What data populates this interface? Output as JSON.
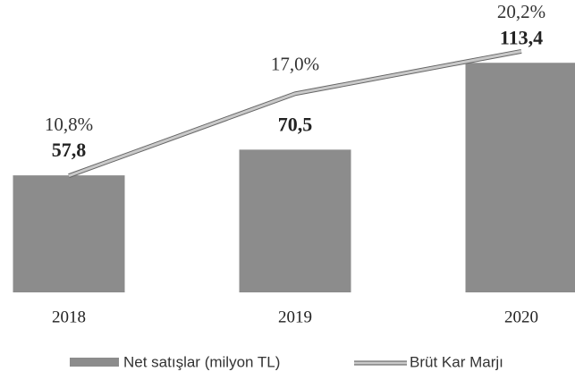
{
  "chart_data": {
    "type": "bar-line",
    "categories": [
      "2018",
      "2019",
      "2020"
    ],
    "series": [
      {
        "name": "Net satışlar (milyon TL)",
        "type": "bar",
        "color": "#8c8c8c",
        "values": [
          57.8,
          70.5,
          113.4
        ],
        "value_labels": [
          "57,8",
          "70,5",
          "113,4"
        ]
      },
      {
        "name": "Brüt Kar Marjı",
        "type": "line",
        "axis": "y2",
        "color": "#c9c9c9",
        "values": [
          10.8,
          17.0,
          20.2
        ],
        "value_labels": [
          "10,8%",
          "17,0%",
          "20,2%"
        ]
      }
    ],
    "ylim": [
      0,
      140
    ],
    "y2lim": [
      2,
      23.4
    ],
    "legend": "bottom"
  }
}
